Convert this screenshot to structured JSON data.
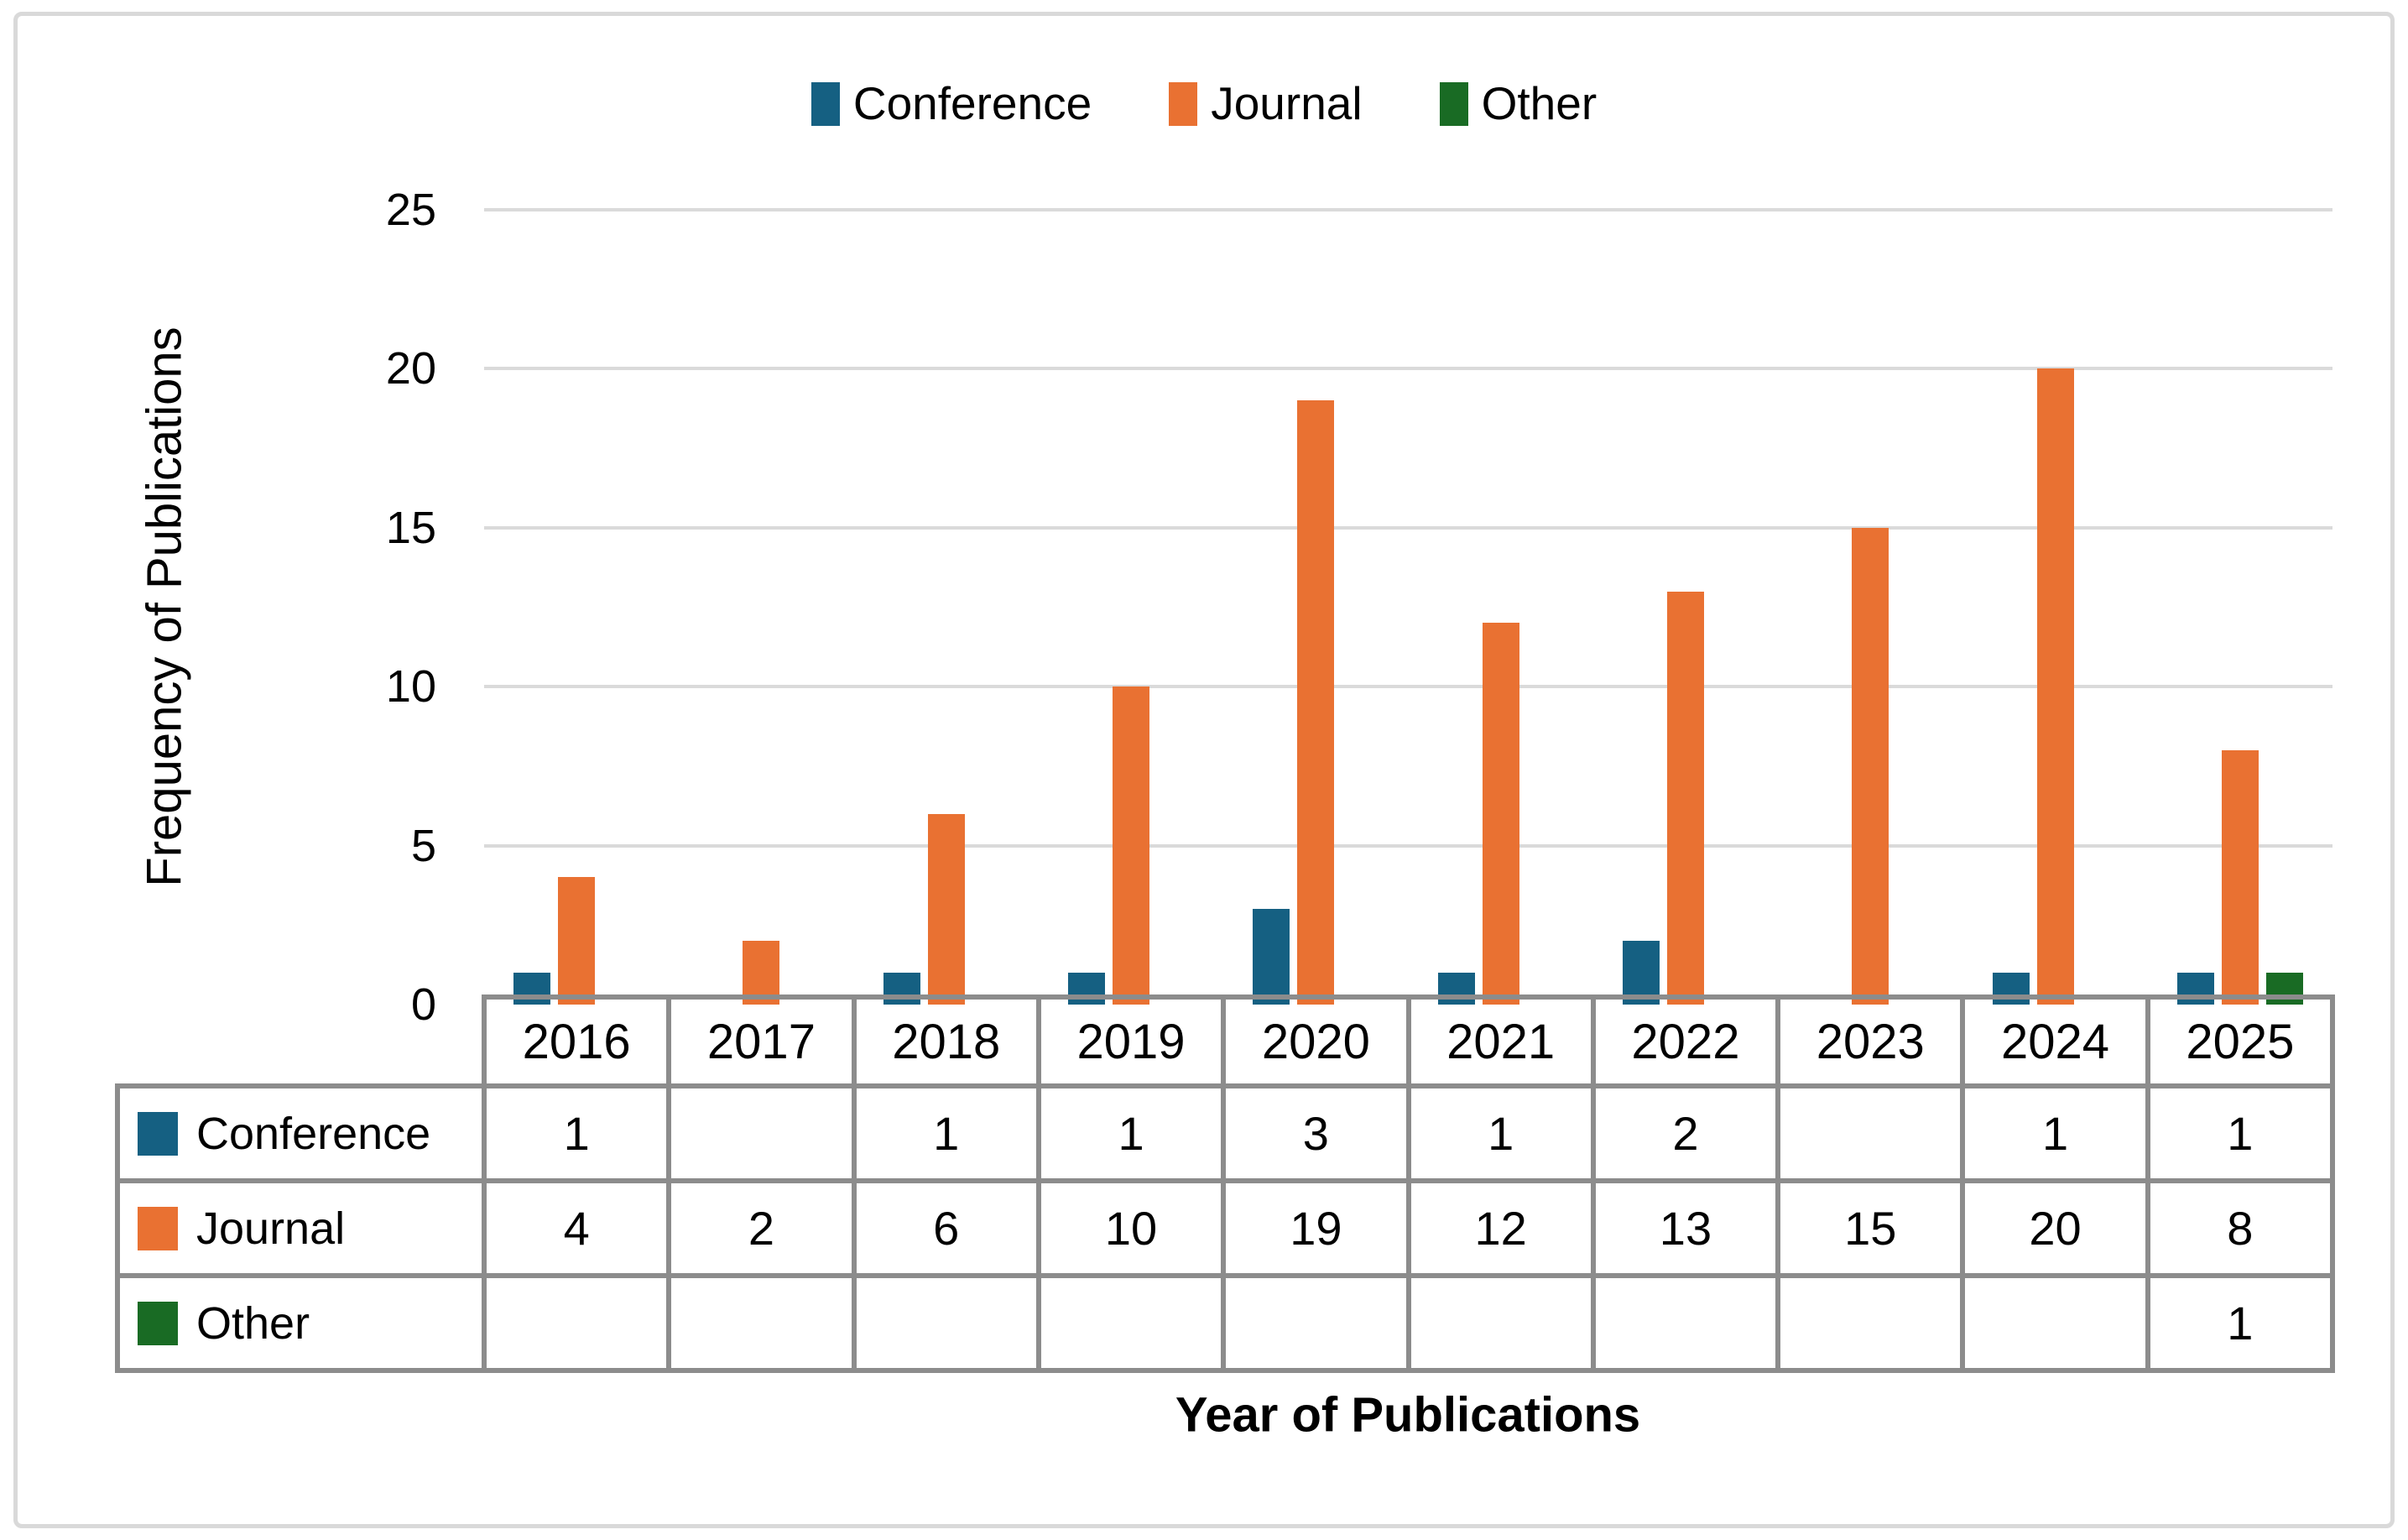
{
  "figure": {
    "y_axis_title": "Frequency of Publications",
    "x_axis_title": "Year of Publications"
  },
  "legend": {
    "position": "top",
    "items": [
      {
        "label": "Conference",
        "color": "#156082"
      },
      {
        "label": "Journal",
        "color": "#E97132"
      },
      {
        "label": "Other",
        "color": "#196B24"
      }
    ]
  },
  "chart_data": {
    "type": "bar",
    "title": "",
    "categories": [
      "2016",
      "2017",
      "2018",
      "2019",
      "2020",
      "2021",
      "2022",
      "2023",
      "2024",
      "2025"
    ],
    "series": [
      {
        "name": "Conference",
        "color": "#156082",
        "values": [
          1,
          null,
          1,
          1,
          3,
          1,
          2,
          null,
          1,
          1
        ]
      },
      {
        "name": "Journal",
        "color": "#E97132",
        "values": [
          4,
          2,
          6,
          10,
          19,
          12,
          13,
          15,
          20,
          8
        ]
      },
      {
        "name": "Other",
        "color": "#196B24",
        "values": [
          null,
          null,
          null,
          null,
          null,
          null,
          null,
          null,
          null,
          1
        ]
      }
    ],
    "xlabel": "Year of Publications",
    "ylabel": "Frequency of Publications",
    "ylim": [
      0,
      25
    ],
    "yticks": [
      0,
      5,
      10,
      15,
      20,
      25
    ],
    "grid": true,
    "legend_position": "top",
    "data_table_shown": true
  },
  "colors": {
    "gridline": "#DADADA",
    "table_border": "#8C8C8C",
    "figure_border": "#D9D9D9",
    "text": "#000000"
  }
}
